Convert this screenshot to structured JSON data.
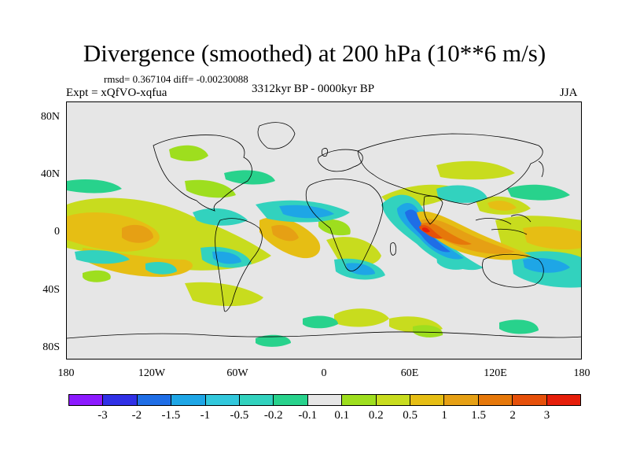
{
  "title": "Divergence (smoothed) at 200 hPa (10**6 m/s)",
  "stats_text": "rmsd= 0.367104 diff= -0.00230088",
  "experiment_text": "Expt = xQfVO-xqfua",
  "period_text": "3312kyr BP - 0000kyr BP",
  "season": "JJA",
  "map": {
    "projection": "cylindrical equidistant",
    "lat_ticks": [
      "80N",
      "40N",
      "0",
      "40S",
      "80S"
    ],
    "lon_ticks": [
      "180",
      "120W",
      "60W",
      "0",
      "60E",
      "120E",
      "180"
    ],
    "background_color": "#e6e6e6",
    "coastline_color": "#000000"
  },
  "colorbar": {
    "colors": [
      "#8c1aff",
      "#3030e6",
      "#1f6ee6",
      "#1ea6e6",
      "#32c8dc",
      "#32d2be",
      "#28d28c",
      "#e6e6e6",
      "#9ede1e",
      "#c8dc1e",
      "#e6be14",
      "#e6a014",
      "#e6780a",
      "#e6500a",
      "#e61e0a"
    ],
    "labels": [
      "-3",
      "-2",
      "-1.5",
      "-1",
      "-0.5",
      "-0.2",
      "-0.1",
      "0.1",
      "0.2",
      "0.5",
      "1",
      "1.5",
      "2",
      "3"
    ]
  }
}
